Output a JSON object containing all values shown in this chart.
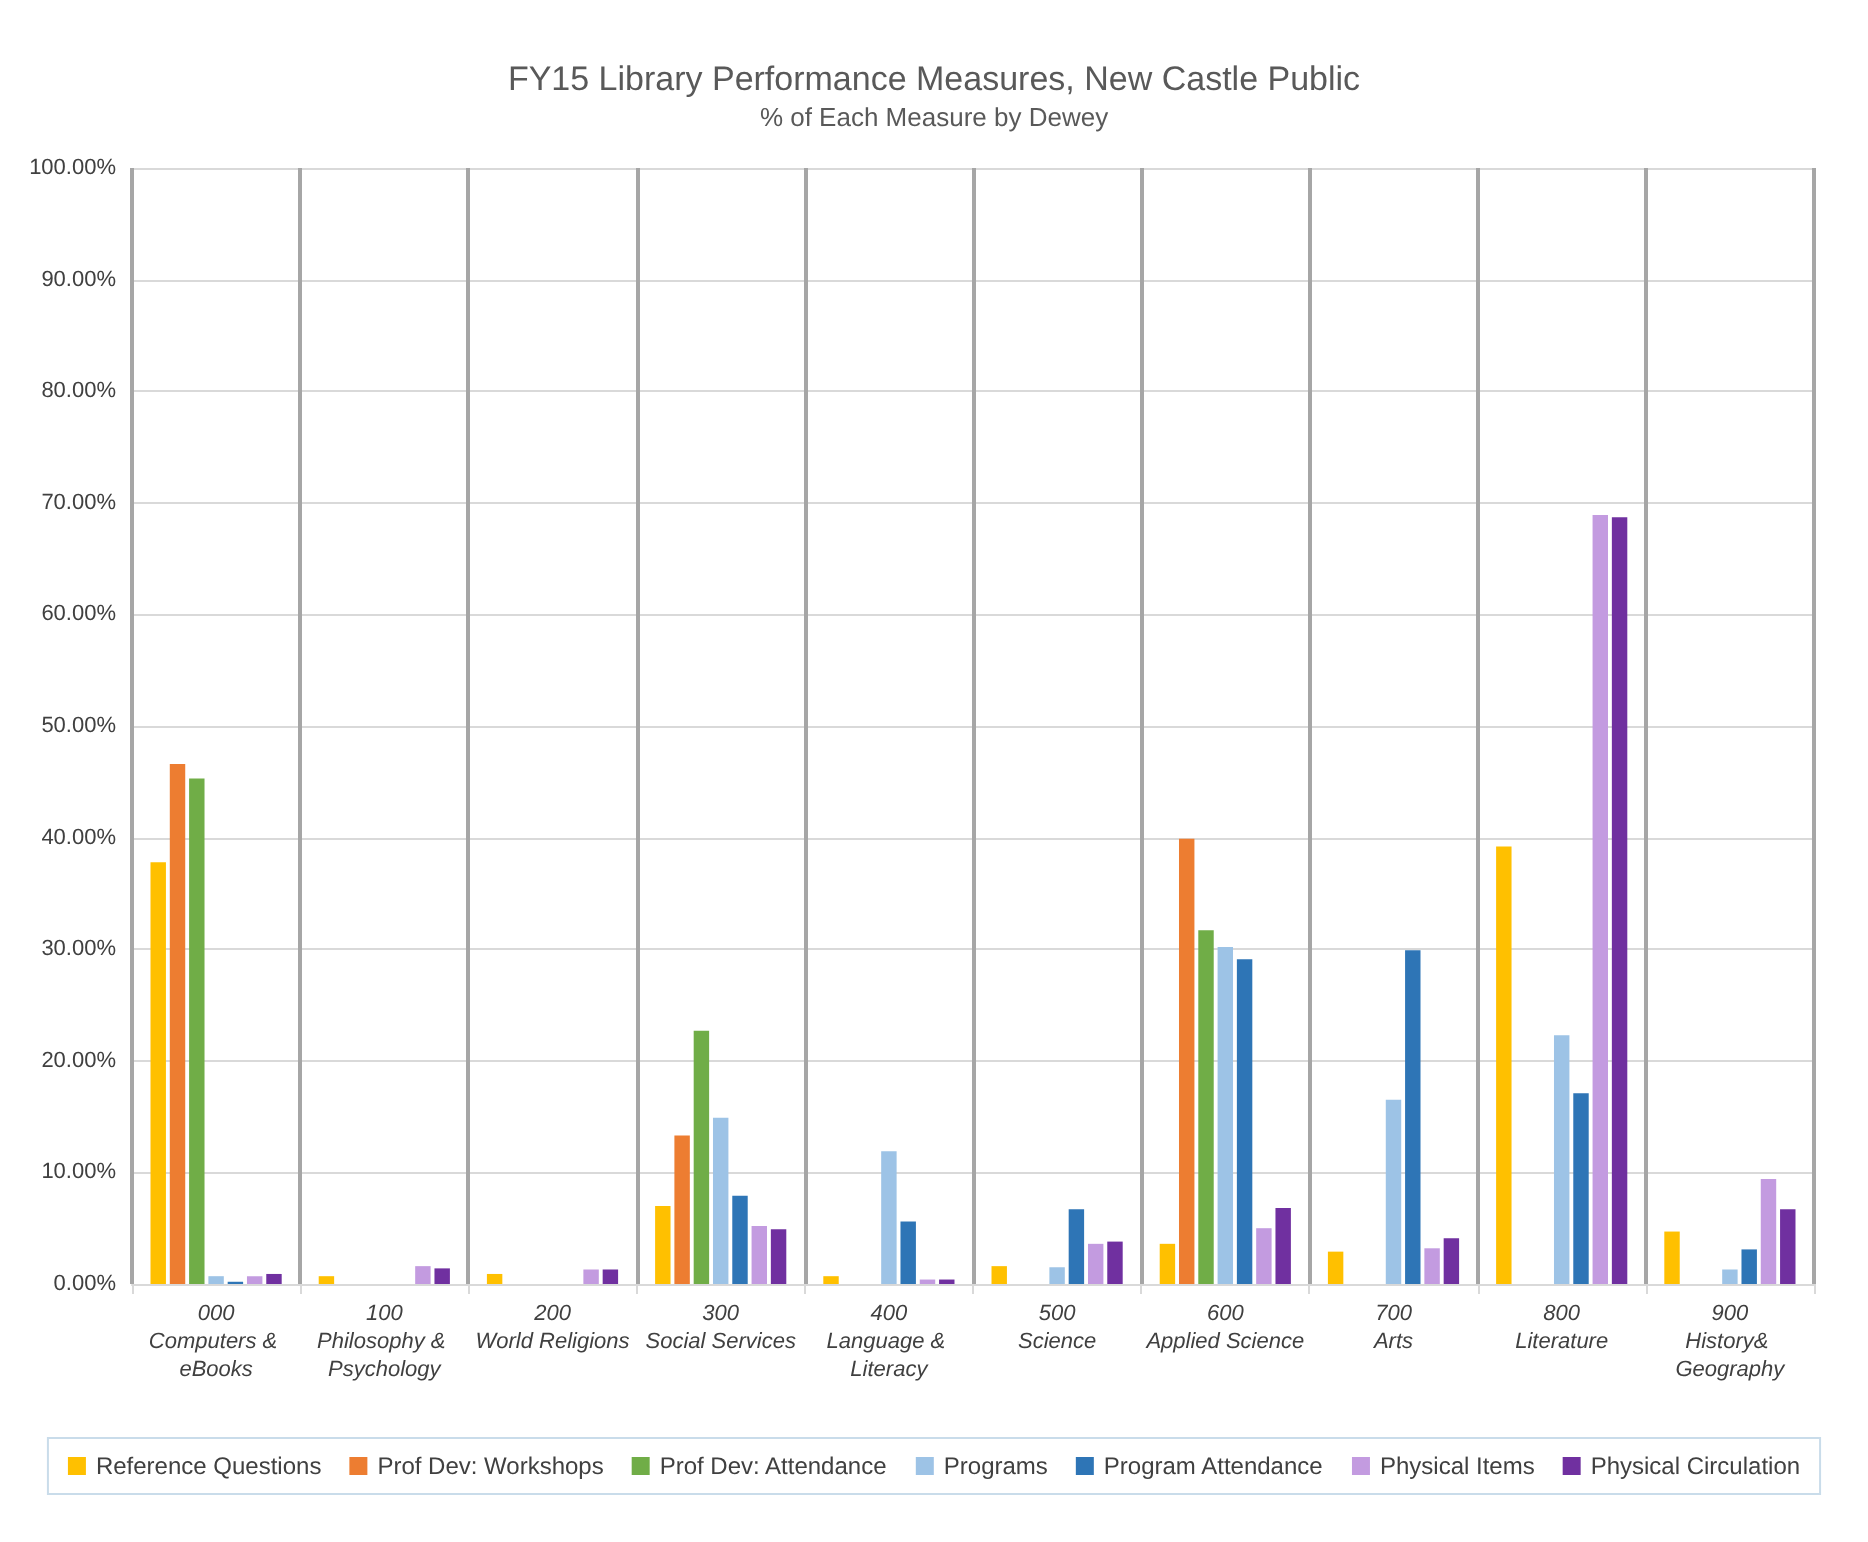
{
  "chart_data": {
    "type": "bar",
    "title": "FY15 Library Performance Measures, New Castle Public",
    "subtitle": "% of Each Measure by Dewey",
    "categories": [
      "000\nComputers & eBooks",
      "100\nPhilosophy & Psychology",
      "200\nWorld Religions",
      "300\nSocial Services",
      "400\nLanguage & Literacy",
      "500\nScience",
      "600\nApplied Science",
      "700\nArts",
      "800\nLiterature",
      "900\nHistory& Geography"
    ],
    "series": [
      {
        "name": "Reference Questions",
        "color": "#ffc000",
        "values": [
          37.8,
          0.7,
          0.9,
          7.0,
          0.7,
          1.6,
          3.6,
          2.9,
          39.2,
          4.7
        ]
      },
      {
        "name": "Prof Dev: Workshops",
        "color": "#ed7d31",
        "values": [
          46.6,
          null,
          null,
          13.3,
          null,
          null,
          39.9,
          null,
          null,
          null
        ]
      },
      {
        "name": "Prof Dev: Attendance",
        "color": "#70ad47",
        "values": [
          45.3,
          null,
          null,
          22.7,
          null,
          null,
          31.7,
          null,
          null,
          null
        ]
      },
      {
        "name": "Programs",
        "color": "#9dc3e6",
        "values": [
          0.7,
          null,
          null,
          14.9,
          11.9,
          1.5,
          30.2,
          16.5,
          22.3,
          1.3
        ]
      },
      {
        "name": "Program Attendance",
        "color": "#2e75b6",
        "values": [
          0.2,
          null,
          null,
          7.9,
          5.6,
          6.7,
          29.1,
          29.9,
          17.1,
          3.1
        ]
      },
      {
        "name": "Physical Items",
        "color": "#c39be0",
        "values": [
          0.7,
          1.6,
          1.3,
          5.2,
          0.4,
          3.6,
          5.0,
          3.2,
          68.9,
          9.4
        ]
      },
      {
        "name": "Physical Circulation",
        "color": "#7030a0",
        "values": [
          0.9,
          1.4,
          1.3,
          4.9,
          0.4,
          3.8,
          6.8,
          4.1,
          68.7,
          6.7
        ]
      }
    ],
    "ylim": [
      0,
      100
    ],
    "yticks": [
      {
        "value": 0,
        "label": "0.00%"
      },
      {
        "value": 10,
        "label": "10.00%"
      },
      {
        "value": 20,
        "label": "20.00%"
      },
      {
        "value": 30,
        "label": "30.00%"
      },
      {
        "value": 40,
        "label": "40.00%"
      },
      {
        "value": 50,
        "label": "50.00%"
      },
      {
        "value": 60,
        "label": "60.00%"
      },
      {
        "value": 70,
        "label": "70.00%"
      },
      {
        "value": 80,
        "label": "80.00%"
      },
      {
        "value": 90,
        "label": "90.00%"
      },
      {
        "value": 100,
        "label": "100.00%"
      }
    ],
    "grid": true,
    "legend": "bottom"
  }
}
